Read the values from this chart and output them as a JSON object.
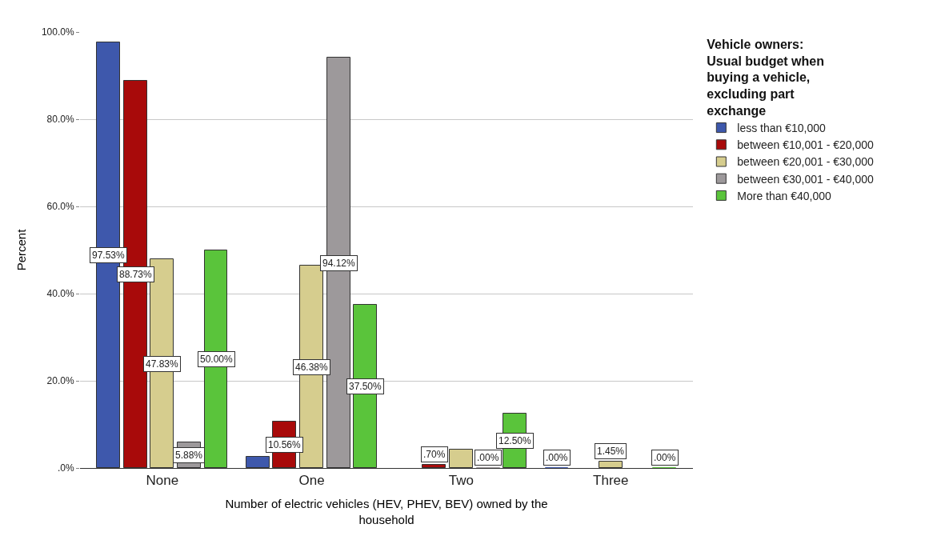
{
  "chart_data": {
    "type": "bar",
    "xlabel": "Number of electric vehicles (HEV, PHEV, BEV) owned by the household",
    "ylabel": "Percent",
    "legend_title": "Vehicle owners: Usual budget when buying a vehicle, excluding part exchange",
    "categories": [
      "None",
      "One",
      "Two",
      "Three"
    ],
    "series": [
      {
        "name": "less than €10,000",
        "color": "#3e58ac",
        "values": [
          97.53,
          2.5,
          null,
          0
        ],
        "value_labels": [
          "97.53%",
          null,
          null,
          ".00%"
        ]
      },
      {
        "name": "between €10,001 - €20,000",
        "color": "#a80a0a",
        "values": [
          88.73,
          10.56,
          0.7,
          null
        ],
        "value_labels": [
          "88.73%",
          "10.56%",
          ".70%",
          null
        ]
      },
      {
        "name": "between €20,001 - €30,000",
        "color": "#d6cd8e",
        "values": [
          47.83,
          46.38,
          4.3,
          1.45
        ],
        "value_labels": [
          "47.83%",
          "46.38%",
          null,
          "1.45%"
        ]
      },
      {
        "name": "between €30,001 - €40,000",
        "color": "#9d999b",
        "values": [
          5.88,
          94.12,
          0,
          null
        ],
        "value_labels": [
          "5.88%",
          "94.12%",
          ".00%",
          null
        ]
      },
      {
        "name": "More than €40,000",
        "color": "#5ac43b",
        "values": [
          50.0,
          37.5,
          12.5,
          0
        ],
        "value_labels": [
          "50.00%",
          "37.50%",
          "12.50%",
          ".00%"
        ]
      }
    ],
    "ylim": [
      0,
      100
    ],
    "yticks": [
      {
        "value": 0,
        "label": ".0%"
      },
      {
        "value": 20,
        "label": "20.0%"
      },
      {
        "value": 40,
        "label": "40.0%"
      },
      {
        "value": 60,
        "label": "60.0%"
      },
      {
        "value": 80,
        "label": "80.0%"
      },
      {
        "value": 100,
        "label": "100.0%"
      }
    ],
    "grid": "y",
    "legend": "top right"
  }
}
